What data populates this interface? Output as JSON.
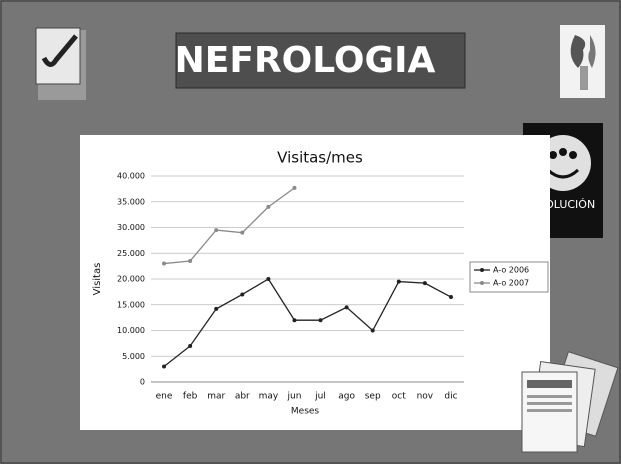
{
  "header": {
    "title": "NEFROLOGIA",
    "badge": "EVOLUCIÓN"
  },
  "chart_data": {
    "type": "line",
    "title": "Visitas/mes",
    "x_label": "Meses",
    "y_label": "Visitas",
    "categories": [
      "ene",
      "feb",
      "mar",
      "abr",
      "may",
      "jun",
      "jul",
      "ago",
      "sep",
      "oct",
      "nov",
      "dic"
    ],
    "series": [
      {
        "name": "A-o 2006",
        "color": "#222222",
        "values": [
          3000,
          7000,
          14200,
          17000,
          20000,
          12000,
          12000,
          14500,
          10000,
          19500,
          19200,
          16500
        ]
      },
      {
        "name": "A-o 2007",
        "color": "#8a8a8a",
        "values": [
          23000,
          23500,
          29500,
          29000,
          34000,
          37700,
          null,
          null,
          null,
          null,
          null,
          null
        ]
      }
    ],
    "ylim": [
      0,
      40000
    ],
    "yticks": [
      0,
      {
        "value": 5000,
        "label": "5.000"
      },
      {
        "value": 10000,
        "label": "10.000"
      },
      {
        "value": 15000,
        "label": "15.000"
      },
      {
        "value": 20000,
        "label": "20.000"
      },
      {
        "value": 25000,
        "label": "25.000"
      },
      {
        "value": 30000,
        "label": "30.000"
      },
      {
        "value": 35000,
        "label": "35.000"
      },
      {
        "value": 40000,
        "label": "40.000"
      }
    ],
    "grid": true,
    "legend": "right"
  }
}
